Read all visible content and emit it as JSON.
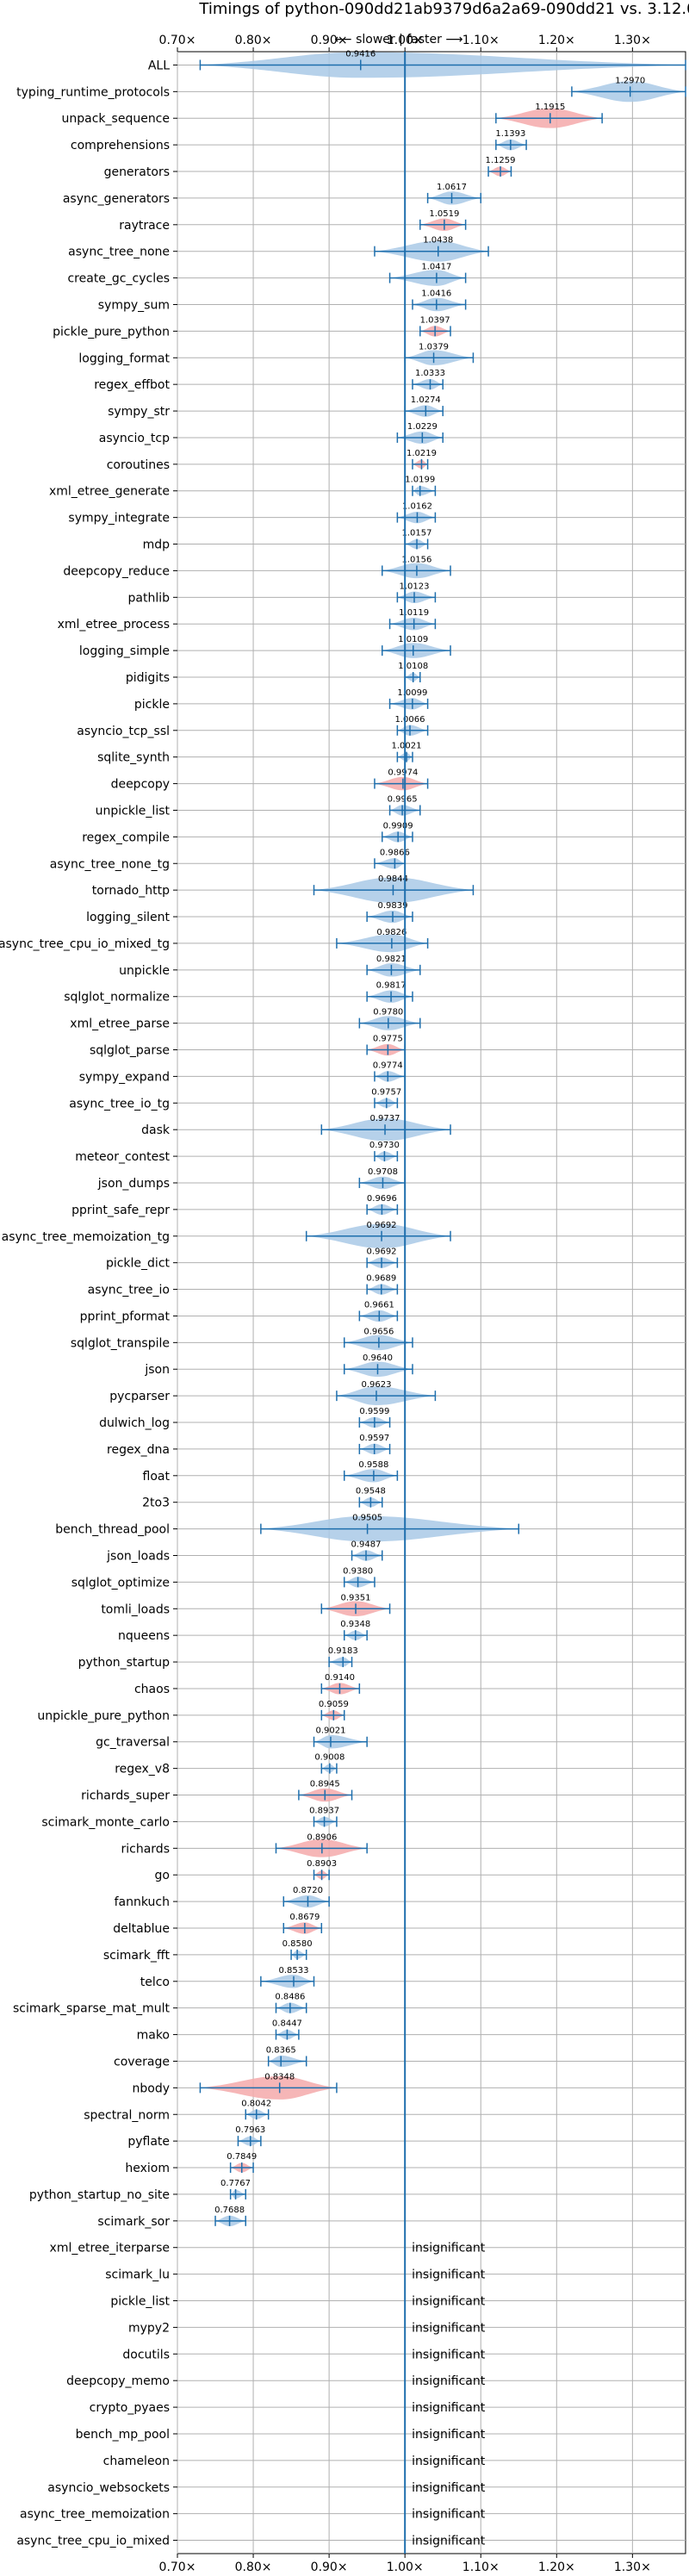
{
  "chart_data": {
    "type": "violin",
    "title": "Timings of python-090dd21ab9379d6a2a69-090dd21 vs. 3.12.0",
    "subtitle": "⟵ slower | faster ⟶",
    "xlim": [
      0.7,
      1.37
    ],
    "x_ticks": [
      0.7,
      0.8,
      0.9,
      1.0,
      1.1,
      1.2,
      1.3
    ],
    "x_tick_labels": [
      "0.70×",
      "0.80×",
      "0.90×",
      "1.00×",
      "1.10×",
      "1.20×",
      "1.30×"
    ],
    "reference_line": 1.0,
    "grid": true,
    "colors": {
      "normal": "#a9c9e6",
      "slower": "#f4a9aa",
      "line": "#1f6fad"
    },
    "insignificant_label": "insignificant",
    "series": [
      {
        "name": "ALL",
        "value": 0.9416,
        "min": 0.73,
        "max": 1.37,
        "label": "0.9416",
        "slower": false
      },
      {
        "name": "typing_runtime_protocols",
        "value": 1.297,
        "min": 1.22,
        "max": 1.37,
        "label": "1.2970",
        "slower": false
      },
      {
        "name": "unpack_sequence",
        "value": 1.1915,
        "min": 1.12,
        "max": 1.26,
        "label": "1.1915",
        "slower": true
      },
      {
        "name": "comprehensions",
        "value": 1.1393,
        "min": 1.12,
        "max": 1.16,
        "label": "1.1393",
        "slower": false
      },
      {
        "name": "generators",
        "value": 1.1259,
        "min": 1.11,
        "max": 1.14,
        "label": "1.1259",
        "slower": true
      },
      {
        "name": "async_generators",
        "value": 1.0617,
        "min": 1.03,
        "max": 1.1,
        "label": "1.0617",
        "slower": false
      },
      {
        "name": "raytrace",
        "value": 1.0519,
        "min": 1.02,
        "max": 1.08,
        "label": "1.0519",
        "slower": true
      },
      {
        "name": "async_tree_none",
        "value": 1.0438,
        "min": 0.96,
        "max": 1.11,
        "label": "1.0438",
        "slower": false
      },
      {
        "name": "create_gc_cycles",
        "value": 1.0417,
        "min": 0.98,
        "max": 1.08,
        "label": "1.0417",
        "slower": false
      },
      {
        "name": "sympy_sum",
        "value": 1.0416,
        "min": 1.01,
        "max": 1.08,
        "label": "1.0416",
        "slower": false
      },
      {
        "name": "pickle_pure_python",
        "value": 1.0397,
        "min": 1.02,
        "max": 1.06,
        "label": "1.0397",
        "slower": true
      },
      {
        "name": "logging_format",
        "value": 1.0379,
        "min": 1.0,
        "max": 1.09,
        "label": "1.0379",
        "slower": false
      },
      {
        "name": "regex_effbot",
        "value": 1.0333,
        "min": 1.01,
        "max": 1.05,
        "label": "1.0333",
        "slower": false
      },
      {
        "name": "sympy_str",
        "value": 1.0274,
        "min": 1.0,
        "max": 1.05,
        "label": "1.0274",
        "slower": false
      },
      {
        "name": "asyncio_tcp",
        "value": 1.0229,
        "min": 0.99,
        "max": 1.05,
        "label": "1.0229",
        "slower": false
      },
      {
        "name": "coroutines",
        "value": 1.0219,
        "min": 1.01,
        "max": 1.03,
        "label": "1.0219",
        "slower": true
      },
      {
        "name": "xml_etree_generate",
        "value": 1.0199,
        "min": 1.01,
        "max": 1.04,
        "label": "1.0199",
        "slower": false
      },
      {
        "name": "sympy_integrate",
        "value": 1.0162,
        "min": 0.99,
        "max": 1.04,
        "label": "1.0162",
        "slower": false
      },
      {
        "name": "mdp",
        "value": 1.0157,
        "min": 1.0,
        "max": 1.03,
        "label": "1.0157",
        "slower": false
      },
      {
        "name": "deepcopy_reduce",
        "value": 1.0156,
        "min": 0.97,
        "max": 1.06,
        "label": "1.0156",
        "slower": false
      },
      {
        "name": "pathlib",
        "value": 1.0123,
        "min": 0.99,
        "max": 1.04,
        "label": "1.0123",
        "slower": false
      },
      {
        "name": "xml_etree_process",
        "value": 1.0119,
        "min": 0.98,
        "max": 1.04,
        "label": "1.0119",
        "slower": false
      },
      {
        "name": "logging_simple",
        "value": 1.0109,
        "min": 0.97,
        "max": 1.06,
        "label": "1.0109",
        "slower": false
      },
      {
        "name": "pidigits",
        "value": 1.0108,
        "min": 1.0,
        "max": 1.02,
        "label": "1.0108",
        "slower": false
      },
      {
        "name": "pickle",
        "value": 1.0099,
        "min": 0.98,
        "max": 1.03,
        "label": "1.0099",
        "slower": false
      },
      {
        "name": "asyncio_tcp_ssl",
        "value": 1.0066,
        "min": 0.99,
        "max": 1.03,
        "label": "1.0066",
        "slower": false
      },
      {
        "name": "sqlite_synth",
        "value": 1.0021,
        "min": 0.99,
        "max": 1.01,
        "label": "1.0021",
        "slower": false
      },
      {
        "name": "deepcopy",
        "value": 0.9974,
        "min": 0.96,
        "max": 1.03,
        "label": "0.9974",
        "slower": true
      },
      {
        "name": "unpickle_list",
        "value": 0.9965,
        "min": 0.98,
        "max": 1.02,
        "label": "0.9965",
        "slower": false
      },
      {
        "name": "regex_compile",
        "value": 0.9909,
        "min": 0.97,
        "max": 1.01,
        "label": "0.9909",
        "slower": false
      },
      {
        "name": "async_tree_none_tg",
        "value": 0.9866,
        "min": 0.96,
        "max": 1.0,
        "label": "0.9866",
        "slower": false
      },
      {
        "name": "tornado_http",
        "value": 0.9844,
        "min": 0.88,
        "max": 1.09,
        "label": "0.9844",
        "slower": false
      },
      {
        "name": "logging_silent",
        "value": 0.9839,
        "min": 0.95,
        "max": 1.01,
        "label": "0.9839",
        "slower": false
      },
      {
        "name": "async_tree_cpu_io_mixed_tg",
        "value": 0.9826,
        "min": 0.91,
        "max": 1.03,
        "label": "0.9826",
        "slower": false
      },
      {
        "name": "unpickle",
        "value": 0.9821,
        "min": 0.95,
        "max": 1.02,
        "label": "0.9821",
        "slower": false
      },
      {
        "name": "sqlglot_normalize",
        "value": 0.9817,
        "min": 0.95,
        "max": 1.01,
        "label": "0.9817",
        "slower": false
      },
      {
        "name": "xml_etree_parse",
        "value": 0.978,
        "min": 0.94,
        "max": 1.02,
        "label": "0.9780",
        "slower": false
      },
      {
        "name": "sqlglot_parse",
        "value": 0.9775,
        "min": 0.95,
        "max": 1.0,
        "label": "0.9775",
        "slower": true
      },
      {
        "name": "sympy_expand",
        "value": 0.9774,
        "min": 0.96,
        "max": 1.0,
        "label": "0.9774",
        "slower": false
      },
      {
        "name": "async_tree_io_tg",
        "value": 0.9757,
        "min": 0.96,
        "max": 0.99,
        "label": "0.9757",
        "slower": false
      },
      {
        "name": "dask",
        "value": 0.9737,
        "min": 0.89,
        "max": 1.06,
        "label": "0.9737",
        "slower": false
      },
      {
        "name": "meteor_contest",
        "value": 0.973,
        "min": 0.96,
        "max": 0.99,
        "label": "0.9730",
        "slower": false
      },
      {
        "name": "json_dumps",
        "value": 0.9708,
        "min": 0.94,
        "max": 1.0,
        "label": "0.9708",
        "slower": false
      },
      {
        "name": "pprint_safe_repr",
        "value": 0.9696,
        "min": 0.95,
        "max": 0.99,
        "label": "0.9696",
        "slower": false
      },
      {
        "name": "async_tree_memoization_tg",
        "value": 0.9692,
        "min": 0.87,
        "max": 1.06,
        "label": "0.9692",
        "slower": false
      },
      {
        "name": "pickle_dict",
        "value": 0.9692,
        "min": 0.95,
        "max": 0.99,
        "label": "0.9692",
        "slower": false
      },
      {
        "name": "async_tree_io",
        "value": 0.9689,
        "min": 0.95,
        "max": 0.99,
        "label": "0.9689",
        "slower": false
      },
      {
        "name": "pprint_pformat",
        "value": 0.9661,
        "min": 0.94,
        "max": 0.99,
        "label": "0.9661",
        "slower": false
      },
      {
        "name": "sqlglot_transpile",
        "value": 0.9656,
        "min": 0.92,
        "max": 1.01,
        "label": "0.9656",
        "slower": false
      },
      {
        "name": "json",
        "value": 0.964,
        "min": 0.92,
        "max": 1.01,
        "label": "0.9640",
        "slower": false
      },
      {
        "name": "pycparser",
        "value": 0.9623,
        "min": 0.91,
        "max": 1.04,
        "label": "0.9623",
        "slower": false
      },
      {
        "name": "dulwich_log",
        "value": 0.9599,
        "min": 0.94,
        "max": 0.98,
        "label": "0.9599",
        "slower": false
      },
      {
        "name": "regex_dna",
        "value": 0.9597,
        "min": 0.94,
        "max": 0.98,
        "label": "0.9597",
        "slower": false
      },
      {
        "name": "float",
        "value": 0.9588,
        "min": 0.92,
        "max": 0.99,
        "label": "0.9588",
        "slower": false
      },
      {
        "name": "2to3",
        "value": 0.9548,
        "min": 0.94,
        "max": 0.97,
        "label": "0.9548",
        "slower": false
      },
      {
        "name": "bench_thread_pool",
        "value": 0.9505,
        "min": 0.81,
        "max": 1.15,
        "label": "0.9505",
        "slower": false
      },
      {
        "name": "json_loads",
        "value": 0.9487,
        "min": 0.93,
        "max": 0.97,
        "label": "0.9487",
        "slower": false
      },
      {
        "name": "sqlglot_optimize",
        "value": 0.938,
        "min": 0.92,
        "max": 0.96,
        "label": "0.9380",
        "slower": false
      },
      {
        "name": "tomli_loads",
        "value": 0.9351,
        "min": 0.89,
        "max": 0.98,
        "label": "0.9351",
        "slower": true
      },
      {
        "name": "nqueens",
        "value": 0.9348,
        "min": 0.92,
        "max": 0.95,
        "label": "0.9348",
        "slower": false
      },
      {
        "name": "python_startup",
        "value": 0.9183,
        "min": 0.9,
        "max": 0.93,
        "label": "0.9183",
        "slower": false
      },
      {
        "name": "chaos",
        "value": 0.914,
        "min": 0.89,
        "max": 0.94,
        "label": "0.9140",
        "slower": true
      },
      {
        "name": "unpickle_pure_python",
        "value": 0.9059,
        "min": 0.89,
        "max": 0.92,
        "label": "0.9059",
        "slower": true
      },
      {
        "name": "gc_traversal",
        "value": 0.9021,
        "min": 0.88,
        "max": 0.95,
        "label": "0.9021",
        "slower": false
      },
      {
        "name": "regex_v8",
        "value": 0.9008,
        "min": 0.89,
        "max": 0.91,
        "label": "0.9008",
        "slower": false
      },
      {
        "name": "richards_super",
        "value": 0.8945,
        "min": 0.86,
        "max": 0.93,
        "label": "0.8945",
        "slower": true
      },
      {
        "name": "scimark_monte_carlo",
        "value": 0.8937,
        "min": 0.88,
        "max": 0.91,
        "label": "0.8937",
        "slower": false
      },
      {
        "name": "richards",
        "value": 0.8906,
        "min": 0.83,
        "max": 0.95,
        "label": "0.8906",
        "slower": true
      },
      {
        "name": "go",
        "value": 0.8903,
        "min": 0.88,
        "max": 0.9,
        "label": "0.8903",
        "slower": true
      },
      {
        "name": "fannkuch",
        "value": 0.872,
        "min": 0.84,
        "max": 0.9,
        "label": "0.8720",
        "slower": false
      },
      {
        "name": "deltablue",
        "value": 0.8679,
        "min": 0.84,
        "max": 0.89,
        "label": "0.8679",
        "slower": true
      },
      {
        "name": "scimark_fft",
        "value": 0.858,
        "min": 0.85,
        "max": 0.87,
        "label": "0.8580",
        "slower": false
      },
      {
        "name": "telco",
        "value": 0.8533,
        "min": 0.81,
        "max": 0.88,
        "label": "0.8533",
        "slower": false
      },
      {
        "name": "scimark_sparse_mat_mult",
        "value": 0.8486,
        "min": 0.83,
        "max": 0.87,
        "label": "0.8486",
        "slower": false
      },
      {
        "name": "mako",
        "value": 0.8447,
        "min": 0.83,
        "max": 0.86,
        "label": "0.8447",
        "slower": false
      },
      {
        "name": "coverage",
        "value": 0.8365,
        "min": 0.82,
        "max": 0.87,
        "label": "0.8365",
        "slower": false
      },
      {
        "name": "nbody",
        "value": 0.8348,
        "min": 0.73,
        "max": 0.91,
        "label": "0.8348",
        "slower": true
      },
      {
        "name": "spectral_norm",
        "value": 0.8042,
        "min": 0.79,
        "max": 0.82,
        "label": "0.8042",
        "slower": false
      },
      {
        "name": "pyflate",
        "value": 0.7963,
        "min": 0.78,
        "max": 0.81,
        "label": "0.7963",
        "slower": false
      },
      {
        "name": "hexiom",
        "value": 0.7849,
        "min": 0.77,
        "max": 0.8,
        "label": "0.7849",
        "slower": true
      },
      {
        "name": "python_startup_no_site",
        "value": 0.7767,
        "min": 0.77,
        "max": 0.79,
        "label": "0.7767",
        "slower": false
      },
      {
        "name": "scimark_sor",
        "value": 0.7688,
        "min": 0.75,
        "max": 0.79,
        "label": "0.7688",
        "slower": false
      }
    ],
    "insignificant": [
      "xml_etree_iterparse",
      "scimark_lu",
      "pickle_list",
      "mypy2",
      "docutils",
      "deepcopy_memo",
      "crypto_pyaes",
      "bench_mp_pool",
      "chameleon",
      "asyncio_websockets",
      "async_tree_memoization",
      "async_tree_cpu_io_mixed"
    ]
  }
}
